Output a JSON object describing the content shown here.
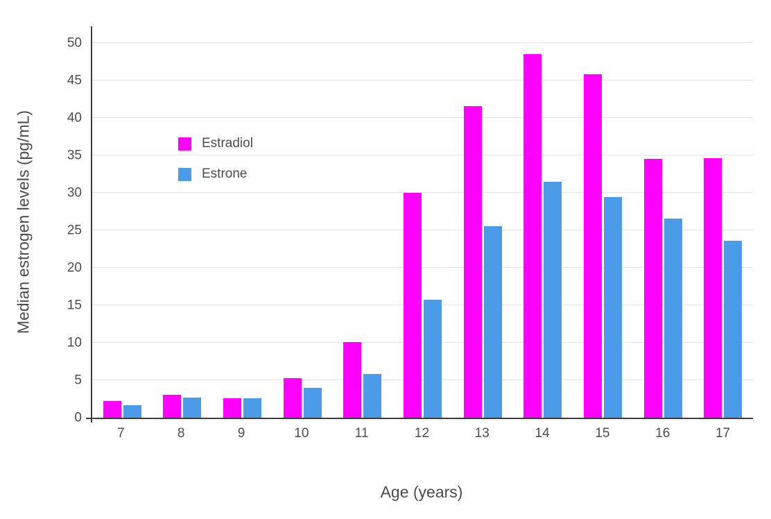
{
  "chart_data": {
    "type": "bar",
    "title": "",
    "xlabel": "Age (years)",
    "ylabel": "Median estrogen levels (pg/mL)",
    "categories": [
      "7",
      "8",
      "9",
      "10",
      "11",
      "12",
      "13",
      "14",
      "15",
      "16",
      "17"
    ],
    "series": [
      {
        "name": "Estradiol",
        "color": "#FF00FF",
        "values": [
          2.2,
          3.1,
          2.6,
          5.3,
          10.1,
          30.0,
          41.6,
          48.5,
          45.8,
          34.5,
          34.6
        ]
      },
      {
        "name": "Estrone",
        "color": "#4C9BE8",
        "values": [
          1.7,
          2.7,
          2.6,
          4.0,
          5.8,
          15.7,
          25.5,
          31.5,
          29.4,
          26.6,
          23.6
        ]
      }
    ],
    "ylim": [
      0,
      50
    ],
    "ytick_step": 5,
    "scale_max": 52.2,
    "grid": true,
    "legend_position": "inside-top-left"
  },
  "style": {
    "axis_color": "#3b3b3b",
    "grid_color": "#e3e3e3",
    "tick_color": "#4c4c4c",
    "background": "#ffffff"
  }
}
